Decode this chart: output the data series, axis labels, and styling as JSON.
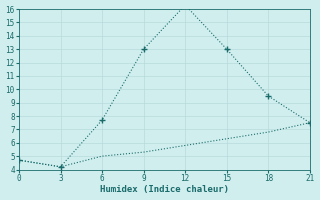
{
  "x": [
    0,
    3,
    6,
    9,
    12,
    15,
    18,
    21
  ],
  "y_upper": [
    4.7,
    4.2,
    7.7,
    13.0,
    16.3,
    13.0,
    9.5,
    7.5
  ],
  "y_lower": [
    4.7,
    4.2,
    5.0,
    5.3,
    5.8,
    6.3,
    6.8,
    7.5
  ],
  "line_color": "#1a6b6b",
  "bg_color": "#d0eeee",
  "grid_color": "#b8dada",
  "xlabel": "Humidex (Indice chaleur)",
  "ylim": [
    4,
    16
  ],
  "xlim": [
    0,
    21
  ],
  "xticks": [
    0,
    3,
    6,
    9,
    12,
    15,
    18,
    21
  ],
  "yticks": [
    4,
    5,
    6,
    7,
    8,
    9,
    10,
    11,
    12,
    13,
    14,
    15,
    16
  ],
  "marker": "+",
  "markersize": 4,
  "linewidth": 0.8,
  "linestyle": ":"
}
